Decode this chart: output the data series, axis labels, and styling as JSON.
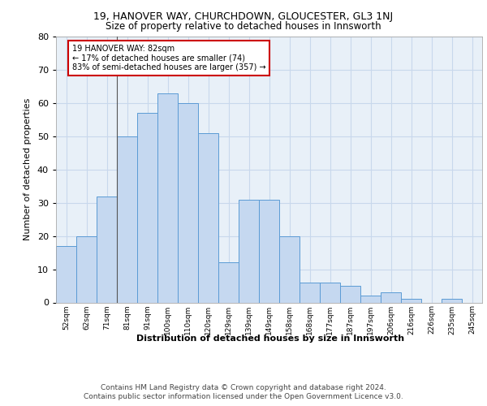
{
  "title1": "19, HANOVER WAY, CHURCHDOWN, GLOUCESTER, GL3 1NJ",
  "title2": "Size of property relative to detached houses in Innsworth",
  "xlabel": "Distribution of detached houses by size in Innsworth",
  "ylabel": "Number of detached properties",
  "categories": [
    "52sqm",
    "62sqm",
    "71sqm",
    "81sqm",
    "91sqm",
    "100sqm",
    "110sqm",
    "120sqm",
    "129sqm",
    "139sqm",
    "149sqm",
    "158sqm",
    "168sqm",
    "177sqm",
    "187sqm",
    "197sqm",
    "206sqm",
    "216sqm",
    "226sqm",
    "235sqm",
    "245sqm"
  ],
  "values": [
    17,
    20,
    32,
    50,
    57,
    63,
    60,
    51,
    12,
    31,
    31,
    20,
    6,
    6,
    5,
    2,
    3,
    1,
    0,
    1,
    0
  ],
  "bar_color": "#c5d8f0",
  "bar_edge_color": "#5b9bd5",
  "annotation_line1": "19 HANOVER WAY: 82sqm",
  "annotation_line2": "← 17% of detached houses are smaller (74)",
  "annotation_line3": "83% of semi-detached houses are larger (357) →",
  "annotation_box_color": "#ffffff",
  "annotation_box_edge_color": "#cc0000",
  "vline_x": 2.5,
  "ylim": [
    0,
    80
  ],
  "yticks": [
    0,
    10,
    20,
    30,
    40,
    50,
    60,
    70,
    80
  ],
  "grid_color": "#c8d8ec",
  "bg_color": "#e8f0f8",
  "footer_line1": "Contains HM Land Registry data © Crown copyright and database right 2024.",
  "footer_line2": "Contains public sector information licensed under the Open Government Licence v3.0."
}
